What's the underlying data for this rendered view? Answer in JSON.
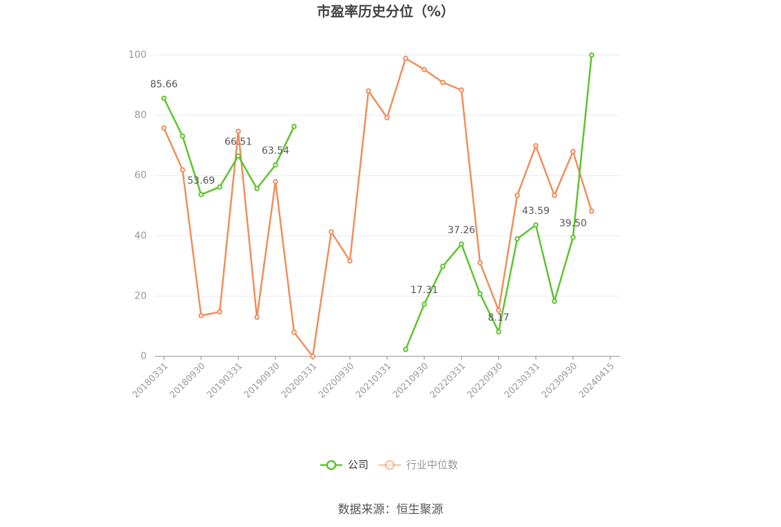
{
  "chart_data": {
    "type": "line",
    "title": "市盈率历史分位（%）",
    "source": "数据来源：恒生聚源",
    "categories": [
      "20180331",
      null,
      "20180930",
      null,
      "20190331",
      null,
      "20190930",
      null,
      "20200331",
      null,
      "20200930",
      null,
      "20210331",
      null,
      "20210930",
      null,
      "20220331",
      null,
      "20220930",
      null,
      "20230331",
      null,
      "20230930",
      null,
      "20240415"
    ],
    "series": [
      {
        "name": "公司",
        "color": "#5ac42a",
        "values": [
          85.66,
          73.1,
          53.69,
          56.2,
          66.51,
          55.7,
          63.54,
          76.3,
          null,
          null,
          null,
          null,
          null,
          2.3,
          17.31,
          29.9,
          37.26,
          20.8,
          8.17,
          39.0,
          43.59,
          18.3,
          39.5,
          100,
          null
        ],
        "value_labels": [
          "85.66",
          null,
          "53.69",
          null,
          "66.51",
          null,
          "63.54",
          null,
          null,
          null,
          null,
          null,
          null,
          null,
          "17.31",
          null,
          "37.26",
          null,
          "8.17",
          null,
          "43.59",
          null,
          "39.50",
          null,
          null
        ]
      },
      {
        "name": "行业中位数",
        "color": "#f28c5a",
        "values": [
          75.8,
          61.9,
          13.5,
          14.8,
          74.7,
          13.0,
          58.0,
          8.0,
          0,
          41.3,
          31.7,
          88.1,
          79.2,
          98.9,
          95.2,
          90.9,
          88.4,
          31.1,
          15.3,
          53.4,
          69.9,
          53.4,
          68.0,
          48.2,
          null
        ]
      }
    ],
    "ylim": [
      0,
      100
    ],
    "yticks": [
      0,
      20,
      40,
      60,
      80,
      100
    ],
    "grid": true
  }
}
